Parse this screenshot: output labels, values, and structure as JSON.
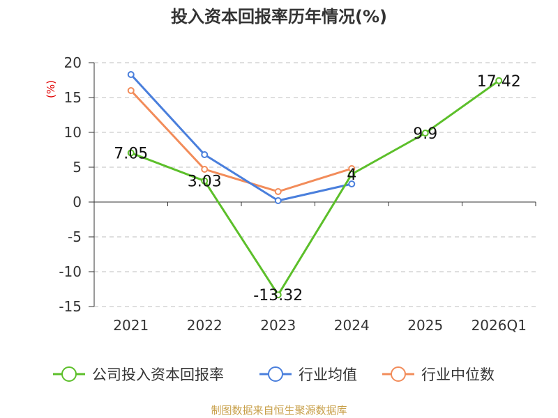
{
  "chart_data": {
    "type": "line",
    "title": "投入资本回报率历年情况(%)",
    "ylabel": "(%)",
    "categories": [
      "2021",
      "2022",
      "2023",
      "2024",
      "2025",
      "2026Q1"
    ],
    "ylim": [
      -15,
      20
    ],
    "yticks": [
      20,
      15,
      10,
      5,
      0,
      -5,
      -10,
      -15
    ],
    "grid": true,
    "legend_position": "bottom",
    "series": [
      {
        "name": "公司投入资本回报率",
        "color": "#5cbf2a",
        "values": [
          7.05,
          3.03,
          -13.32,
          4,
          9.9,
          17.42
        ],
        "labels": [
          "7.05",
          "3.03",
          "-13.32",
          "4",
          "9.9",
          "17.42"
        ]
      },
      {
        "name": "行业均值",
        "color": "#4a7fdc",
        "values": [
          18.3,
          6.8,
          0.2,
          2.6,
          null,
          null
        ]
      },
      {
        "name": "行业中位数",
        "color": "#f28c5a",
        "values": [
          16.0,
          4.7,
          1.5,
          4.8,
          null,
          null
        ]
      }
    ]
  },
  "source": "制图数据来自恒生聚源数据库"
}
